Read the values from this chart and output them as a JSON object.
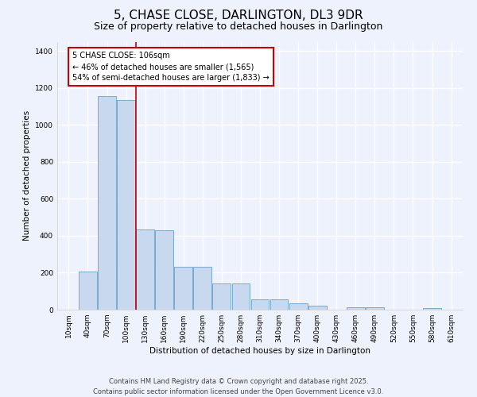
{
  "title": "5, CHASE CLOSE, DARLINGTON, DL3 9DR",
  "subtitle": "Size of property relative to detached houses in Darlington",
  "xlabel": "Distribution of detached houses by size in Darlington",
  "ylabel": "Number of detached properties",
  "categories": [
    "10sqm",
    "40sqm",
    "70sqm",
    "100sqm",
    "130sqm",
    "160sqm",
    "190sqm",
    "220sqm",
    "250sqm",
    "280sqm",
    "310sqm",
    "340sqm",
    "370sqm",
    "400sqm",
    "430sqm",
    "460sqm",
    "490sqm",
    "520sqm",
    "550sqm",
    "580sqm",
    "610sqm"
  ],
  "values": [
    0,
    207,
    1155,
    1135,
    435,
    430,
    230,
    232,
    140,
    140,
    58,
    55,
    35,
    20,
    0,
    13,
    12,
    0,
    0,
    10,
    0
  ],
  "bar_color": "#c8d8ee",
  "bar_edge_color": "#7aaad0",
  "red_line_x": 3.5,
  "annotation_text": "5 CHASE CLOSE: 106sqm\n← 46% of detached houses are smaller (1,565)\n54% of semi-detached houses are larger (1,833) →",
  "annotation_box_color": "#ffffff",
  "annotation_box_edge": "#cc0000",
  "red_line_color": "#cc0000",
  "ylim": [
    0,
    1450
  ],
  "yticks": [
    0,
    200,
    400,
    600,
    800,
    1000,
    1200,
    1400
  ],
  "footer_line1": "Contains HM Land Registry data © Crown copyright and database right 2025.",
  "footer_line2": "Contains public sector information licensed under the Open Government Licence v3.0.",
  "background_color": "#eef2fc",
  "grid_color": "#ffffff",
  "title_fontsize": 11,
  "subtitle_fontsize": 9,
  "axis_label_fontsize": 7.5,
  "tick_fontsize": 6.5,
  "annotation_fontsize": 7,
  "footer_fontsize": 6
}
